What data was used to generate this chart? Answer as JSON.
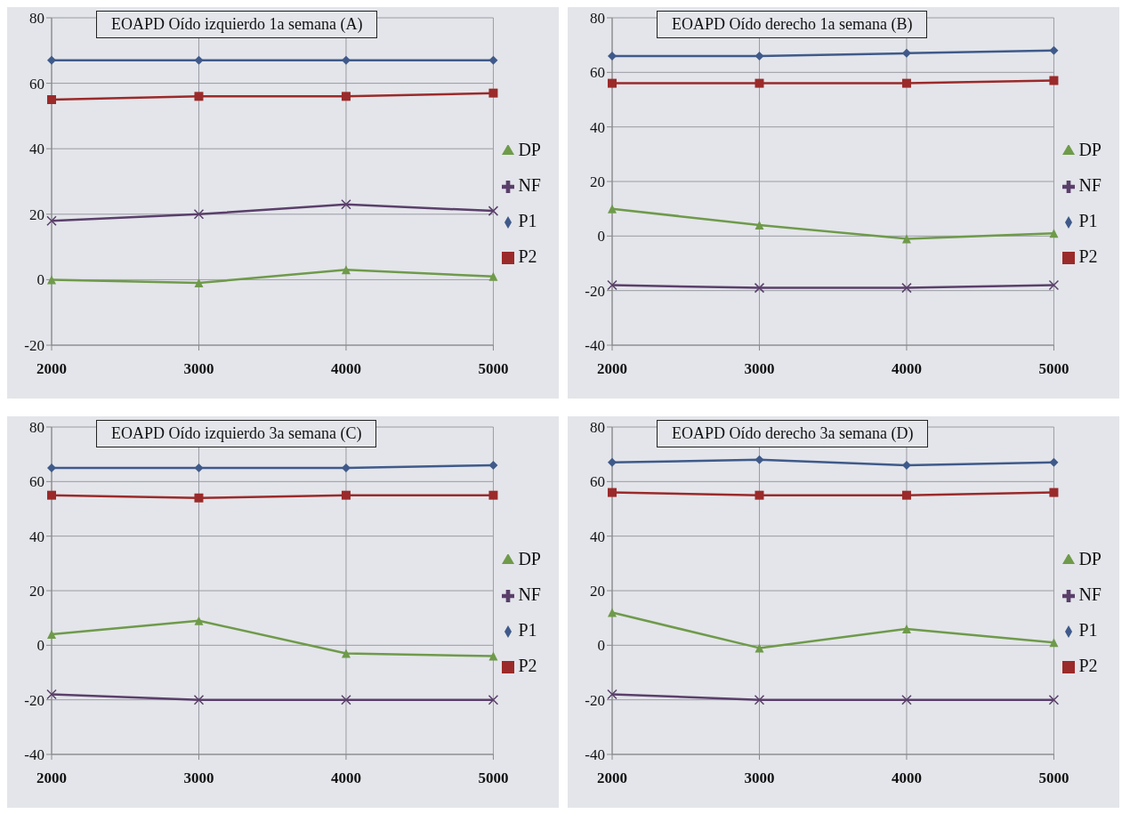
{
  "chart_data": [
    {
      "type": "line",
      "title": "EOAPD Oído izquierdo 1a semana (A)",
      "categories": [
        "2000",
        "3000",
        "4000",
        "5000"
      ],
      "ylim": [
        -20,
        80
      ],
      "yticks": [
        -20,
        0,
        20,
        40,
        60,
        80
      ],
      "grid": true,
      "legend": "right",
      "series": [
        {
          "name": "P1",
          "color": "#3f5a8a",
          "marker": "diamond",
          "values": [
            67,
            67,
            67,
            67
          ]
        },
        {
          "name": "P2",
          "color": "#9b2a2a",
          "marker": "square",
          "values": [
            55,
            56,
            56,
            57
          ]
        },
        {
          "name": "DP",
          "color": "#6f9a4a",
          "marker": "triangle",
          "values": [
            0,
            -1,
            3,
            1
          ]
        },
        {
          "name": "NF",
          "color": "#5a3f6a",
          "marker": "cross",
          "values": [
            18,
            20,
            23,
            21
          ]
        }
      ]
    },
    {
      "type": "line",
      "title": "EOAPD Oído derecho 1a semana (B)",
      "categories": [
        "2000",
        "3000",
        "4000",
        "5000"
      ],
      "ylim": [
        -40,
        80
      ],
      "yticks": [
        -40,
        -20,
        0,
        20,
        40,
        60,
        80
      ],
      "grid": true,
      "legend": "right",
      "series": [
        {
          "name": "P1",
          "color": "#3f5a8a",
          "marker": "diamond",
          "values": [
            66,
            66,
            67,
            68
          ]
        },
        {
          "name": "P2",
          "color": "#9b2a2a",
          "marker": "square",
          "values": [
            56,
            56,
            56,
            57
          ]
        },
        {
          "name": "DP",
          "color": "#6f9a4a",
          "marker": "triangle",
          "values": [
            10,
            4,
            -1,
            1
          ]
        },
        {
          "name": "NF",
          "color": "#5a3f6a",
          "marker": "cross",
          "values": [
            -18,
            -19,
            -19,
            -18
          ]
        }
      ]
    },
    {
      "type": "line",
      "title": "EOAPD Oído izquierdo 3a semana (C)",
      "categories": [
        "2000",
        "3000",
        "4000",
        "5000"
      ],
      "ylim": [
        -40,
        80
      ],
      "yticks": [
        -40,
        -20,
        0,
        20,
        40,
        60,
        80
      ],
      "grid": true,
      "legend": "right",
      "series": [
        {
          "name": "P1",
          "color": "#3f5a8a",
          "marker": "diamond",
          "values": [
            65,
            65,
            65,
            66
          ]
        },
        {
          "name": "P2",
          "color": "#9b2a2a",
          "marker": "square",
          "values": [
            55,
            54,
            55,
            55
          ]
        },
        {
          "name": "DP",
          "color": "#6f9a4a",
          "marker": "triangle",
          "values": [
            4,
            9,
            -3,
            -4
          ]
        },
        {
          "name": "NF",
          "color": "#5a3f6a",
          "marker": "cross",
          "values": [
            -18,
            -20,
            -20,
            -20
          ]
        }
      ]
    },
    {
      "type": "line",
      "title": "EOAPD Oído derecho 3a semana (D)",
      "categories": [
        "2000",
        "3000",
        "4000",
        "5000"
      ],
      "ylim": [
        -40,
        80
      ],
      "yticks": [
        -40,
        -20,
        0,
        20,
        40,
        60,
        80
      ],
      "grid": true,
      "legend": "right",
      "series": [
        {
          "name": "P1",
          "color": "#3f5a8a",
          "marker": "diamond",
          "values": [
            67,
            68,
            66,
            67
          ]
        },
        {
          "name": "P2",
          "color": "#9b2a2a",
          "marker": "square",
          "values": [
            56,
            55,
            55,
            56
          ]
        },
        {
          "name": "DP",
          "color": "#6f9a4a",
          "marker": "triangle",
          "values": [
            12,
            -1,
            6,
            1
          ]
        },
        {
          "name": "NF",
          "color": "#5a3f6a",
          "marker": "cross",
          "values": [
            -18,
            -20,
            -20,
            -20
          ]
        }
      ]
    }
  ]
}
